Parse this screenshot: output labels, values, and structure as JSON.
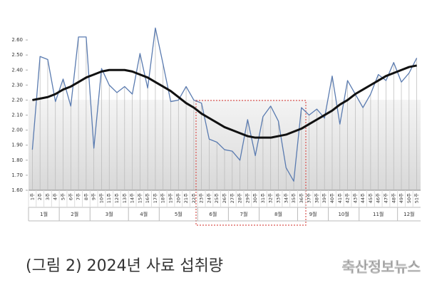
{
  "chart_data": {
    "type": "line",
    "caption": "(그림 2) 2024년 사료 섭취량",
    "watermark": "축산정보뉴스",
    "categories": [
      "1주",
      "2주",
      "3주",
      "4주",
      "5주",
      "6주",
      "7주",
      "8주",
      "9주",
      "10주",
      "11주",
      "12주",
      "13주",
      "14주",
      "15주",
      "16주",
      "17주",
      "18주",
      "19주",
      "20주",
      "21주",
      "22주",
      "23주",
      "24주",
      "25주",
      "26주",
      "27주",
      "28주",
      "29주",
      "30주",
      "31주",
      "32주",
      "33주",
      "34주",
      "35주",
      "36주",
      "37주",
      "38주",
      "39주",
      "40주",
      "41주",
      "42주",
      "43주",
      "44주",
      "45주",
      "46주",
      "47주",
      "48주",
      "49주",
      "50주",
      "51주"
    ],
    "month_labels": [
      "1월",
      "2월",
      "3월",
      "4월",
      "5월",
      "6월",
      "7월",
      "8월",
      "9월",
      "10월",
      "11월",
      "12월"
    ],
    "month_weeks": [
      4,
      4,
      5,
      4,
      5,
      4,
      4,
      5,
      4,
      4,
      5,
      3
    ],
    "series": [
      {
        "color": "#5a7bb0",
        "values": [
          1.87,
          2.49,
          2.47,
          2.19,
          2.34,
          2.16,
          2.62,
          2.62,
          1.88,
          2.41,
          2.3,
          2.25,
          2.29,
          2.24,
          2.51,
          2.28,
          2.68,
          2.44,
          2.19,
          2.2,
          2.29,
          2.2,
          2.18,
          1.94,
          1.92,
          1.87,
          1.86,
          1.8,
          2.07,
          1.83,
          2.09,
          2.16,
          2.06,
          1.75,
          1.66,
          2.15,
          2.1,
          2.14,
          2.08,
          2.36,
          2.04,
          2.33,
          2.24,
          2.15,
          2.24,
          2.37,
          2.33,
          2.45,
          2.32,
          2.38,
          2.48
        ]
      },
      {
        "color": "#111111",
        "values": [
          2.2,
          2.21,
          2.22,
          2.24,
          2.27,
          2.29,
          2.32,
          2.35,
          2.37,
          2.39,
          2.4,
          2.4,
          2.4,
          2.39,
          2.37,
          2.35,
          2.32,
          2.29,
          2.26,
          2.22,
          2.18,
          2.15,
          2.11,
          2.08,
          2.05,
          2.02,
          2.0,
          1.98,
          1.96,
          1.95,
          1.95,
          1.95,
          1.96,
          1.97,
          1.99,
          2.01,
          2.04,
          2.07,
          2.1,
          2.13,
          2.17,
          2.2,
          2.24,
          2.27,
          2.3,
          2.33,
          2.36,
          2.38,
          2.4,
          2.42,
          2.43
        ]
      }
    ],
    "ylim": [
      1.6,
      2.7
    ],
    "yticks": [
      {
        "value": 1.6,
        "label": "1.60"
      },
      {
        "value": 1.7,
        "label": "1.70"
      },
      {
        "value": 1.8,
        "label": "1.80"
      },
      {
        "value": 1.9,
        "label": "1.90"
      },
      {
        "value": 2.0,
        "label": "2.00"
      },
      {
        "value": 2.1,
        "label": "2.10"
      },
      {
        "value": 2.2,
        "label": "2.20"
      },
      {
        "value": 2.3,
        "label": "2.30"
      },
      {
        "value": 2.4,
        "label": "2.40"
      },
      {
        "value": 2.5,
        "label": "2.50"
      },
      {
        "value": 2.6,
        "label": "2.60"
      }
    ]
  }
}
